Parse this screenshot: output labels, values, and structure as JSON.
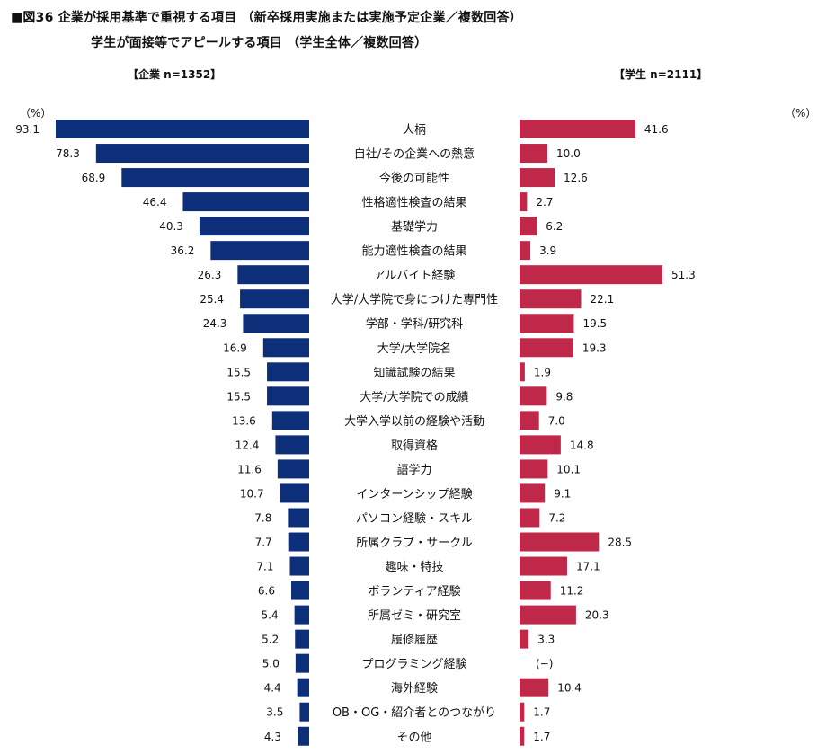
{
  "titles": {
    "line1": "■図36 企業が採用基準で重視する項目 （新卒採用実施または実施予定企業／複数回答）",
    "line2": "学生が面接等でアピールする項目 （学生全体／複数回答）"
  },
  "samples": {
    "left": "【企業 n=1352】",
    "right": "【学生 n=2111】"
  },
  "units": {
    "left": "（%）",
    "right": "（%）"
  },
  "chart_data": {
    "type": "bar",
    "orientation": "horizontal-butterfly",
    "categories": [
      "人柄",
      "自社/その企業への熱意",
      "今後の可能性",
      "性格適性検査の結果",
      "基礎学力",
      "能力適性検査の結果",
      "アルバイト経験",
      "大学/大学院で身につけた専門性",
      "学部・学科/研究科",
      "大学/大学院名",
      "知識試験の結果",
      "大学/大学院での成績",
      "大学入学以前の経験や活動",
      "取得資格",
      "語学力",
      "インターンシップ経験",
      "パソコン経験・スキル",
      "所属クラブ・サークル",
      "趣味・特技",
      "ボランティア経験",
      "所属ゼミ・研究室",
      "履修履歴",
      "プログラミング経験",
      "海外経験",
      "OB・OG・紹介者とのつながり",
      "その他"
    ],
    "series": [
      {
        "name": "企業",
        "color": "#0d2f7a",
        "values": [
          93.1,
          78.3,
          68.9,
          46.4,
          40.3,
          36.2,
          26.3,
          25.4,
          24.3,
          16.9,
          15.5,
          15.5,
          13.6,
          12.4,
          11.6,
          10.7,
          7.8,
          7.7,
          7.1,
          6.6,
          5.4,
          5.2,
          5.0,
          4.4,
          3.5,
          4.3
        ],
        "labels": [
          "93.1",
          "78.3",
          "68.9",
          "46.4",
          "40.3",
          "36.2",
          "26.3",
          "25.4",
          "24.3",
          "16.9",
          "15.5",
          "15.5",
          "13.6",
          "12.4",
          "11.6",
          "10.7",
          "7.8",
          "7.7",
          "7.1",
          "6.6",
          "5.4",
          "5.2",
          "5.0",
          "4.4",
          "3.5",
          "4.3"
        ]
      },
      {
        "name": "学生",
        "color": "#c0284a",
        "values": [
          41.6,
          10.0,
          12.6,
          2.7,
          6.2,
          3.9,
          51.3,
          22.1,
          19.5,
          19.3,
          1.9,
          9.8,
          7.0,
          14.8,
          10.1,
          9.1,
          7.2,
          28.5,
          17.1,
          11.2,
          20.3,
          3.3,
          null,
          10.4,
          1.7,
          1.7
        ],
        "labels": [
          "41.6",
          "10.0",
          "12.6",
          "2.7",
          "6.2",
          "3.9",
          "51.3",
          "22.1",
          "19.5",
          "19.3",
          "1.9",
          "9.8",
          "7.0",
          "14.8",
          "10.1",
          "9.1",
          "7.2",
          "28.5",
          "17.1",
          "11.2",
          "20.3",
          "3.3",
          "(−)",
          "10.4",
          "1.7",
          "1.7"
        ]
      }
    ],
    "legend": "none",
    "grid": false
  }
}
